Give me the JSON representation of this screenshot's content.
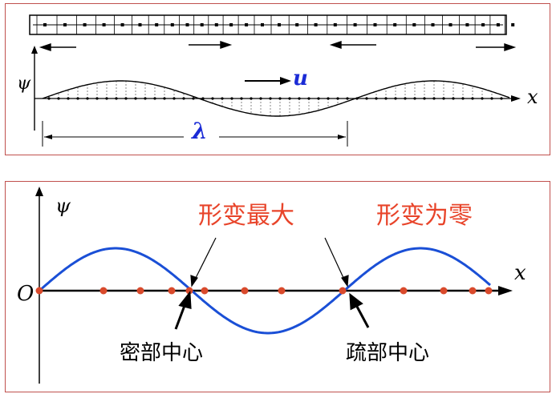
{
  "top_panel": {
    "axis_y_label": "ψ",
    "axis_x_label": "x",
    "velocity_label": "u",
    "wavelength_label": "λ"
  },
  "bottom_panel": {
    "axis_y_label": "ψ",
    "axis_x_label": "x",
    "origin_label": "O",
    "label_max_deformation": "形变最大",
    "label_zero_deformation": "形变为零",
    "label_compression_center": "密部中心",
    "label_rarefaction_center": "疏部中心"
  },
  "colors": {
    "panel_border": "#c0504d",
    "wave_blue": "#1a4fd6",
    "label_red": "#e8442a",
    "dot_red": "#d94a2c",
    "symbol_blue": "#1a2bd6"
  }
}
